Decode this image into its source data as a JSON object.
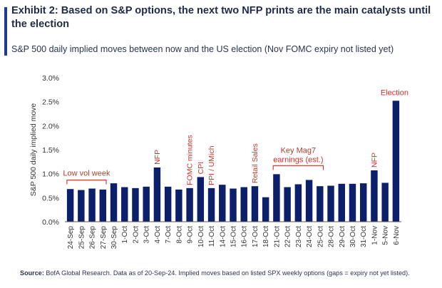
{
  "header": {
    "title": "Exhibit 2: Based on S&P options, the next two NFP prints are the main catalysts until the election",
    "subtitle": "S&P 500 daily implied moves between now and the US election (Nov FOMC expiry not listed yet)"
  },
  "footer": {
    "source_label": "Source:",
    "source_text": " BofA Global Research. Data as of 20-Sep-24. Implied moves based on listed SPX weekly options (gaps = expiry not yet listed)."
  },
  "colors": {
    "bar": "#0c1f6b",
    "annotation": "#c0392b",
    "axis": "#333333",
    "grid": "#d9d9d9"
  },
  "chart_data": {
    "type": "bar",
    "ylabel": "S&P 500 daily implied move",
    "ylim": [
      0,
      3.0
    ],
    "yticks": [
      "0.0%",
      "0.5%",
      "1.0%",
      "1.5%",
      "2.0%",
      "2.5%",
      "3.0%"
    ],
    "ytick_values": [
      0,
      0.5,
      1.0,
      1.5,
      2.0,
      2.5,
      3.0
    ],
    "categories": [
      "24-Sep",
      "25-Sep",
      "26-Sep",
      "27-Sep",
      "30-Sep",
      "1-Oct",
      "2-Oct",
      "3-Oct",
      "4-Oct",
      "7-Oct",
      "8-Oct",
      "9-Oct",
      "10-Oct",
      "11-Oct",
      "14-Oct",
      "15-Oct",
      "16-Oct",
      "17-Oct",
      "18-Oct",
      "21-Oct",
      "22-Oct",
      "23-Oct",
      "24-Oct",
      "25-Oct",
      "28-Oct",
      "29-Oct",
      "30-Oct",
      "31-Oct",
      "1-Nov",
      "5-Nov",
      "6-Nov"
    ],
    "values": [
      0.68,
      0.66,
      0.69,
      0.67,
      0.8,
      0.72,
      0.7,
      0.73,
      1.13,
      0.73,
      0.67,
      0.7,
      0.93,
      0.7,
      0.77,
      0.69,
      0.72,
      0.74,
      0.51,
      0.99,
      0.72,
      0.78,
      0.87,
      0.74,
      0.75,
      0.79,
      0.79,
      0.8,
      1.07,
      0.81,
      2.52
    ],
    "annotations": [
      {
        "text": "Low vol week",
        "type": "bracket",
        "from": 0,
        "to": 3
      },
      {
        "text": "NFP",
        "type": "vertical",
        "at": 8
      },
      {
        "text": "FOMC minutes",
        "type": "vertical",
        "at": 11
      },
      {
        "text": "CPI",
        "type": "vertical",
        "at": 12
      },
      {
        "text": "PPI / UMich",
        "type": "vertical",
        "at": 13
      },
      {
        "text": "Retail Sales",
        "type": "vertical",
        "at": 17
      },
      {
        "text": "Key Mag7",
        "text2": "earnings (est.)",
        "type": "bracket2",
        "from": 19,
        "to": 23
      },
      {
        "text": "NFP",
        "type": "vertical",
        "at": 28
      },
      {
        "text": "Election",
        "type": "horizontal",
        "at": 30
      }
    ]
  }
}
